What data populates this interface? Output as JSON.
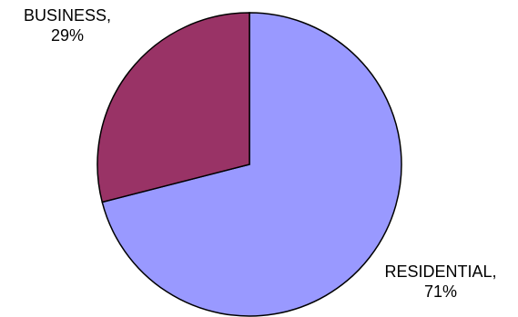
{
  "chart_data": {
    "type": "pie",
    "title": "",
    "slices": [
      {
        "name": "RESIDENTIAL",
        "value": 71,
        "label_name": "RESIDENTIAL,",
        "label_pct": "71%",
        "color": "#9999FF"
      },
      {
        "name": "BUSINESS",
        "value": 29,
        "label_name": "BUSINESS,",
        "label_pct": "29%",
        "color": "#993366"
      }
    ],
    "stroke_color": "#000000"
  }
}
